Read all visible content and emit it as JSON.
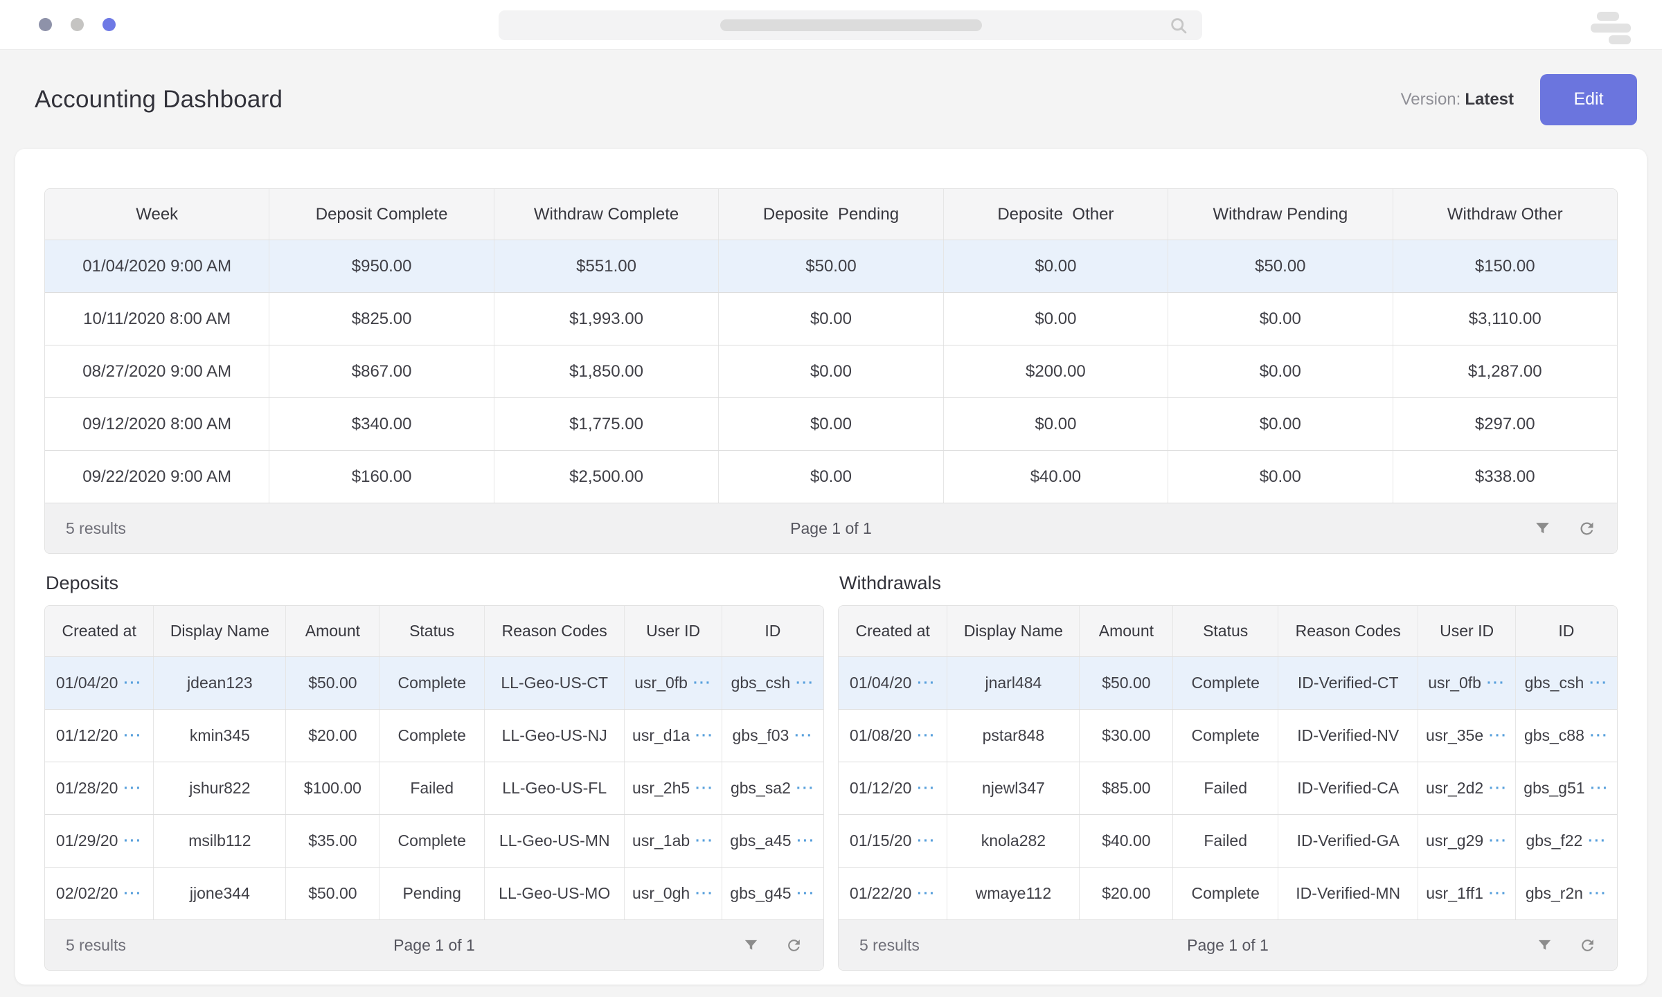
{
  "window": {
    "dot_colors": [
      "#8e92a9",
      "#c5c4c2",
      "#6e79e5"
    ],
    "search": {
      "value": ""
    }
  },
  "header": {
    "title": "Accounting Dashboard",
    "version_label": "Version:",
    "version_value": "Latest",
    "edit_button": "Edit"
  },
  "ui": {
    "truncation_marker": "···",
    "accent_color": "#6b75de",
    "row_highlight_color": "#e9f1fb",
    "truncation_color": "#58a0dc"
  },
  "summary_table": {
    "columns": [
      "Week",
      "Deposit Complete",
      "Withdraw Complete",
      "Deposite  Pending",
      "Deposite  Other",
      "Withdraw Pending",
      "Withdraw Other"
    ],
    "highlight_row": 0,
    "rows": [
      [
        "01/04/2020 9:00 AM",
        "$950.00",
        "$551.00",
        "$50.00",
        "$0.00",
        "$50.00",
        "$150.00"
      ],
      [
        "10/11/2020 8:00 AM",
        "$825.00",
        "$1,993.00",
        "$0.00",
        "$0.00",
        "$0.00",
        "$3,110.00"
      ],
      [
        "08/27/2020 9:00 AM",
        "$867.00",
        "$1,850.00",
        "$0.00",
        "$200.00",
        "$0.00",
        "$1,287.00"
      ],
      [
        "09/12/2020 8:00 AM",
        "$340.00",
        "$1,775.00",
        "$0.00",
        "$0.00",
        "$0.00",
        "$297.00"
      ],
      [
        "09/22/2020 9:00 AM",
        "$160.00",
        "$2,500.00",
        "$0.00",
        "$40.00",
        "$0.00",
        "$338.00"
      ]
    ],
    "footer": {
      "results_label": "5 results",
      "page_label": "Page 1 of 1"
    }
  },
  "deposits_table": {
    "title": "Deposits",
    "columns": [
      "Created at",
      "Display Name",
      "Amount",
      "Status",
      "Reason Codes",
      "User ID",
      "ID"
    ],
    "highlight_row": 0,
    "rows": [
      [
        {
          "t": "01/04/20",
          "more": true
        },
        "jdean123",
        "$50.00",
        "Complete",
        "LL-Geo-US-CT",
        {
          "t": "usr_0fb",
          "more": true
        },
        {
          "t": "gbs_csh",
          "more": true
        }
      ],
      [
        {
          "t": "01/12/20",
          "more": true
        },
        "kmin345",
        "$20.00",
        "Complete",
        "LL-Geo-US-NJ",
        {
          "t": "usr_d1a",
          "more": true
        },
        {
          "t": "gbs_f03",
          "more": true
        }
      ],
      [
        {
          "t": "01/28/20",
          "more": true
        },
        "jshur822",
        "$100.00",
        "Failed",
        "LL-Geo-US-FL",
        {
          "t": "usr_2h5",
          "more": true
        },
        {
          "t": "gbs_sa2",
          "more": true
        }
      ],
      [
        {
          "t": "01/29/20",
          "more": true
        },
        "msilb112",
        "$35.00",
        "Complete",
        "LL-Geo-US-MN",
        {
          "t": "usr_1ab",
          "more": true
        },
        {
          "t": "gbs_a45",
          "more": true
        }
      ],
      [
        {
          "t": "02/02/20",
          "more": true
        },
        "jjone344",
        "$50.00",
        "Pending",
        "LL-Geo-US-MO",
        {
          "t": "usr_0gh",
          "more": true
        },
        {
          "t": "gbs_g45",
          "more": true
        }
      ]
    ],
    "footer": {
      "results_label": "5 results",
      "page_label": "Page 1 of 1"
    }
  },
  "withdrawals_table": {
    "title": "Withdrawals",
    "columns": [
      "Created at",
      "Display Name",
      "Amount",
      "Status",
      "Reason Codes",
      "User ID",
      "ID"
    ],
    "highlight_row": 0,
    "rows": [
      [
        {
          "t": "01/04/20",
          "more": true
        },
        "jnarl484",
        "$50.00",
        "Complete",
        "ID-Verified-CT",
        {
          "t": "usr_0fb",
          "more": true
        },
        {
          "t": "gbs_csh",
          "more": true
        }
      ],
      [
        {
          "t": "01/08/20",
          "more": true
        },
        "pstar848",
        "$30.00",
        "Complete",
        "ID-Verified-NV",
        {
          "t": "usr_35e",
          "more": true
        },
        {
          "t": "gbs_c88",
          "more": true
        }
      ],
      [
        {
          "t": "01/12/20",
          "more": true
        },
        "njewl347",
        "$85.00",
        "Failed",
        "ID-Verified-CA",
        {
          "t": "usr_2d2",
          "more": true
        },
        {
          "t": "gbs_g51",
          "more": true
        }
      ],
      [
        {
          "t": "01/15/20",
          "more": true
        },
        "knola282",
        "$40.00",
        "Failed",
        "ID-Verified-GA",
        {
          "t": "usr_g29",
          "more": true
        },
        {
          "t": "gbs_f22",
          "more": true
        }
      ],
      [
        {
          "t": "01/22/20",
          "more": true
        },
        "wmaye112",
        "$20.00",
        "Complete",
        "ID-Verified-MN",
        {
          "t": "usr_1ff1",
          "more": true
        },
        {
          "t": "gbs_r2n",
          "more": true
        }
      ]
    ],
    "footer": {
      "results_label": "5 results",
      "page_label": "Page 1 of 1"
    }
  }
}
